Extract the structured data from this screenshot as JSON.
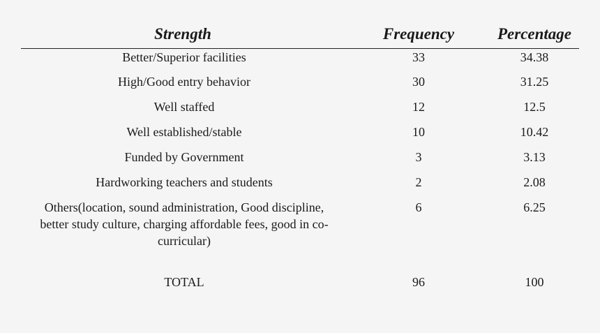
{
  "headers": {
    "strength": "Strength",
    "frequency": "Frequency",
    "percentage": "Percentage"
  },
  "rows": [
    {
      "strength": "Better/Superior facilities",
      "frequency": "33",
      "percentage": "34.38"
    },
    {
      "strength": "High/Good entry behavior",
      "frequency": "30",
      "percentage": "31.25"
    },
    {
      "strength": "Well staffed",
      "frequency": "12",
      "percentage": "12.5"
    },
    {
      "strength": "Well established/stable",
      "frequency": "10",
      "percentage": "10.42"
    },
    {
      "strength": "Funded by Government",
      "frequency": "3",
      "percentage": "3.13"
    },
    {
      "strength": "Hardworking teachers and students",
      "frequency": "2",
      "percentage": "2.08"
    },
    {
      "strength_lines": [
        "Others(location, sound administration, Good discipline,",
        "better study culture, charging affordable fees, good in co-",
        "curricular)"
      ],
      "frequency": "6",
      "percentage": "6.25"
    }
  ],
  "total": {
    "label": "TOTAL",
    "frequency": "96",
    "percentage": "100"
  }
}
